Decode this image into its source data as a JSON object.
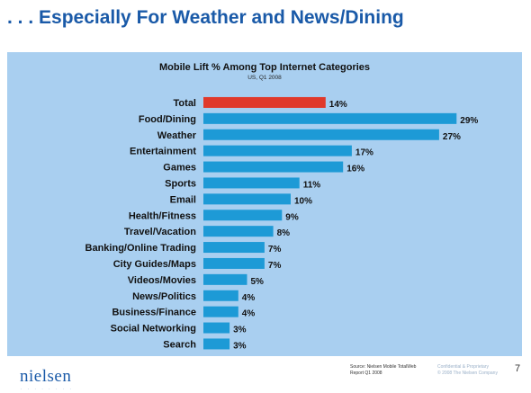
{
  "slide": {
    "title": ". . . Especially For Weather and News/Dining",
    "page_number": "7"
  },
  "footer": {
    "logo": "nielsen",
    "logo_dots": ". . . . . . . .",
    "source_line1": "Source: Nielsen Mobile TotalWeb",
    "source_line2": "Report Q1 2008",
    "confidential_line1": "Confidential & Proprietary",
    "confidential_line2": "© 2008 The Nielsen Company"
  },
  "chart_data": {
    "type": "bar",
    "orientation": "horizontal",
    "title": "Mobile Lift % Among Top Internet Categories",
    "subtitle": "US, Q1 2008",
    "categories": [
      "Total",
      "Food/Dining",
      "Weather",
      "Entertainment",
      "Games",
      "Sports",
      "Email",
      "Health/Fitness",
      "Travel/Vacation",
      "Banking/Online Trading",
      "City Guides/Maps",
      "Videos/Movies",
      "News/Politics",
      "Business/Finance",
      "Social Networking",
      "Search"
    ],
    "values": [
      14,
      29,
      27,
      17,
      16,
      11,
      10,
      9,
      8,
      7,
      7,
      5,
      4,
      4,
      3,
      3
    ],
    "value_labels": [
      "14%",
      "29%",
      "27%",
      "17%",
      "16%",
      "11%",
      "10%",
      "9%",
      "8%",
      "7%",
      "7%",
      "5%",
      "4%",
      "4%",
      "3%",
      "3%"
    ],
    "xlim": [
      0,
      30
    ],
    "grid": false,
    "legend": "none",
    "colors": {
      "highlight": "#e0392b",
      "bar": "#1d9ad6",
      "background": "#a9cff0"
    },
    "highlight_index": 0
  }
}
